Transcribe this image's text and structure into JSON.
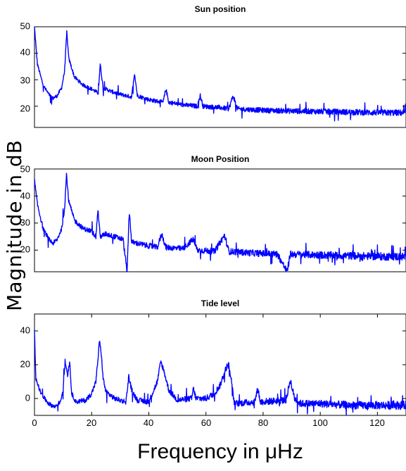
{
  "chart_data": [
    {
      "type": "line",
      "title": "Sun position",
      "xlim": [
        0,
        130
      ],
      "ylim": [
        12,
        50
      ],
      "yticks": [
        20,
        30,
        40,
        50
      ],
      "xticks": [],
      "grid": false,
      "color": "#0000ff",
      "floor": 18,
      "background": [
        [
          0,
          50
        ],
        [
          1,
          36
        ],
        [
          3,
          28
        ],
        [
          5,
          24.5
        ],
        [
          6.5,
          23
        ],
        [
          8,
          24
        ],
        [
          9.5,
          27
        ],
        [
          10.5,
          33
        ],
        [
          11.3,
          48
        ],
        [
          12,
          38
        ],
        [
          14,
          31
        ],
        [
          17,
          28
        ],
        [
          20,
          26.5
        ],
        [
          22.3,
          25
        ],
        [
          23,
          36
        ],
        [
          24,
          27
        ],
        [
          27,
          25.5
        ],
        [
          30,
          24.5
        ],
        [
          34,
          23.5
        ],
        [
          35,
          32.5
        ],
        [
          36,
          24
        ],
        [
          40,
          22.5
        ],
        [
          45,
          21.5
        ],
        [
          46,
          26.5
        ],
        [
          47,
          21.5
        ],
        [
          52,
          20.5
        ],
        [
          57,
          20
        ],
        [
          58,
          24
        ],
        [
          59,
          20
        ],
        [
          65,
          19.5
        ],
        [
          68,
          19
        ],
        [
          69.5,
          24
        ],
        [
          71,
          19
        ],
        [
          80,
          18.5
        ],
        [
          90,
          18.2
        ],
        [
          100,
          18
        ],
        [
          110,
          17.8
        ],
        [
          120,
          17.6
        ],
        [
          130,
          17.5
        ]
      ],
      "noise": [
        0.6,
        1.2,
        2.5
      ]
    },
    {
      "type": "line",
      "title": "Moon Position",
      "xlim": [
        0,
        130
      ],
      "ylim": [
        12,
        50
      ],
      "yticks": [
        20,
        30,
        40,
        50
      ],
      "xticks": [],
      "grid": false,
      "color": "#0000ff",
      "floor": 18,
      "background": [
        [
          0,
          46
        ],
        [
          1,
          37
        ],
        [
          3,
          28
        ],
        [
          5,
          24
        ],
        [
          6.5,
          22.5
        ],
        [
          8,
          24
        ],
        [
          9.5,
          28
        ],
        [
          10.5,
          35
        ],
        [
          11.2,
          48
        ],
        [
          12,
          38
        ],
        [
          14,
          31
        ],
        [
          17,
          28
        ],
        [
          20,
          27
        ],
        [
          21.5,
          25
        ],
        [
          22.2,
          35
        ],
        [
          23,
          25
        ],
        [
          25,
          26
        ],
        [
          28,
          25
        ],
        [
          31,
          24
        ],
        [
          32.4,
          12
        ],
        [
          33.2,
          34
        ],
        [
          34,
          23
        ],
        [
          38,
          22
        ],
        [
          43,
          21
        ],
        [
          44.5,
          26
        ],
        [
          46,
          21
        ],
        [
          52,
          20.5
        ],
        [
          55.5,
          24
        ],
        [
          57,
          20
        ],
        [
          63,
          19.5
        ],
        [
          66.5,
          25.5
        ],
        [
          68,
          19.5
        ],
        [
          75,
          19
        ],
        [
          85,
          18.5
        ],
        [
          88.4,
          12
        ],
        [
          89.5,
          18.5
        ],
        [
          100,
          18.2
        ],
        [
          115,
          17.8
        ],
        [
          130,
          17.5
        ]
      ],
      "noise": [
        0.8,
        1.5,
        3.0
      ]
    },
    {
      "type": "line",
      "title": "Tide level",
      "xlim": [
        0,
        130
      ],
      "ylim": [
        -10,
        50
      ],
      "yticks": [
        0,
        20,
        40
      ],
      "xticks": [
        0,
        20,
        40,
        60,
        80,
        100,
        120
      ],
      "xlabel": "Frequency in μHz",
      "grid": false,
      "color": "#0000ff",
      "floor": -3,
      "background": [
        [
          0,
          40
        ],
        [
          0.5,
          12
        ],
        [
          2,
          4
        ],
        [
          3.5,
          0
        ],
        [
          5,
          -3
        ],
        [
          7,
          -5
        ],
        [
          9,
          -2
        ],
        [
          10,
          5
        ],
        [
          10.7,
          22
        ],
        [
          11.6,
          14
        ],
        [
          12.3,
          22
        ],
        [
          13,
          3
        ],
        [
          14.5,
          -2
        ],
        [
          18,
          -1
        ],
        [
          20,
          3
        ],
        [
          21.5,
          10
        ],
        [
          22.3,
          25
        ],
        [
          22.7,
          34
        ],
        [
          23.3,
          28
        ],
        [
          24,
          12
        ],
        [
          25,
          4
        ],
        [
          28,
          0
        ],
        [
          32,
          -2
        ],
        [
          33,
          13
        ],
        [
          34,
          5
        ],
        [
          36,
          -1
        ],
        [
          40,
          -2
        ],
        [
          43,
          10
        ],
        [
          44.2,
          22
        ],
        [
          45.5,
          15
        ],
        [
          47,
          5
        ],
        [
          50,
          -1
        ],
        [
          55,
          0
        ],
        [
          55.6,
          6
        ],
        [
          56.5,
          0
        ],
        [
          60,
          0
        ],
        [
          63,
          3
        ],
        [
          65,
          8
        ],
        [
          67,
          18
        ],
        [
          68,
          20
        ],
        [
          68.8,
          12
        ],
        [
          69.5,
          2
        ],
        [
          70,
          -3
        ],
        [
          77,
          -2
        ],
        [
          78.2,
          6
        ],
        [
          79,
          -2
        ],
        [
          88,
          -1
        ],
        [
          89.5,
          11
        ],
        [
          91,
          0
        ],
        [
          93,
          -3
        ],
        [
          100,
          -3
        ],
        [
          110,
          -4
        ],
        [
          120,
          -4
        ],
        [
          130,
          -4
        ]
      ],
      "noise": [
        1.2,
        2.5,
        5.0
      ]
    }
  ],
  "ylabel": "Magnitude in dB",
  "y_tick_labels": [
    [
      "20",
      "30",
      "40",
      "50"
    ],
    [
      "20",
      "30",
      "40",
      "50"
    ],
    [
      "0",
      "20",
      "40"
    ]
  ],
  "x_tick_labels": [
    "0",
    "20",
    "40",
    "60",
    "80",
    "100",
    "120"
  ]
}
